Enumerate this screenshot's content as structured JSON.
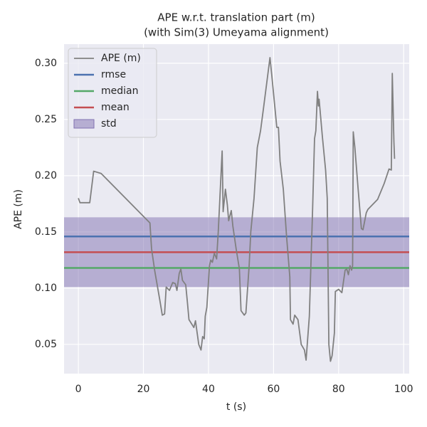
{
  "chart_data": {
    "type": "line",
    "title": "APE w.r.t. translation part (m)",
    "subtitle": "(with Sim(3) Umeyama alignment)",
    "xlabel": "t (s)",
    "ylabel": "APE (m)",
    "xlim": [
      -4.4,
      101.7
    ],
    "ylim": [
      0.024,
      0.317
    ],
    "xticks": [
      0,
      20,
      40,
      60,
      80,
      100
    ],
    "yticks": [
      {
        "value": 0.05,
        "label": "0.05"
      },
      {
        "value": 0.1,
        "label": "0.10"
      },
      {
        "value": 0.15,
        "label": "0.15"
      },
      {
        "value": 0.2,
        "label": "0.20"
      },
      {
        "value": 0.25,
        "label": "0.25"
      },
      {
        "value": 0.3,
        "label": "0.30"
      }
    ],
    "grid": true,
    "legend": "upper left",
    "series": [
      {
        "name": "APE (m)",
        "color": "#808080",
        "x": [
          0,
          0.5,
          3.5,
          4.7,
          7,
          22,
          22.5,
          23.5,
          25,
          25.8,
          26.5,
          27,
          28,
          29,
          29.8,
          30.3,
          31,
          31.5,
          32,
          33,
          33.5,
          34,
          35.5,
          36,
          37,
          37.7,
          38.2,
          38.7,
          39,
          39.5,
          40.3,
          40.7,
          41.2,
          41.8,
          42.5,
          43,
          44.2,
          44.5,
          45.2,
          45.8,
          46.2,
          47,
          47.5,
          48.5,
          49.5,
          50,
          51,
          51.5,
          52.5,
          53,
          54,
          55,
          56,
          57,
          58.9,
          59.5,
          61,
          61.5,
          62,
          63,
          64,
          65,
          65.2,
          66,
          66.5,
          67.5,
          68.5,
          69.5,
          70,
          71,
          72,
          72.6,
          73,
          73.5,
          73.8,
          74,
          75,
          76,
          76.5,
          77,
          77.5,
          78,
          78.7,
          79,
          80,
          81,
          82,
          82.5,
          83,
          83.5,
          84,
          84.3,
          84.5,
          85,
          86,
          87,
          87.5,
          88.5,
          89,
          92,
          94,
          95.5,
          96.2,
          96.5,
          97,
          97.2
        ],
        "values": [
          0.18,
          0.176,
          0.176,
          0.204,
          0.202,
          0.158,
          0.135,
          0.115,
          0.09,
          0.076,
          0.077,
          0.101,
          0.098,
          0.105,
          0.104,
          0.098,
          0.113,
          0.117,
          0.107,
          0.103,
          0.088,
          0.072,
          0.065,
          0.071,
          0.05,
          0.045,
          0.057,
          0.055,
          0.075,
          0.083,
          0.12,
          0.125,
          0.123,
          0.131,
          0.126,
          0.15,
          0.222,
          0.168,
          0.188,
          0.174,
          0.16,
          0.169,
          0.155,
          0.135,
          0.117,
          0.08,
          0.076,
          0.078,
          0.12,
          0.15,
          0.18,
          0.225,
          0.24,
          0.262,
          0.305,
          0.288,
          0.243,
          0.243,
          0.213,
          0.188,
          0.146,
          0.11,
          0.072,
          0.068,
          0.076,
          0.072,
          0.05,
          0.045,
          0.036,
          0.075,
          0.17,
          0.233,
          0.24,
          0.275,
          0.262,
          0.268,
          0.235,
          0.205,
          0.18,
          0.05,
          0.035,
          0.04,
          0.06,
          0.097,
          0.099,
          0.096,
          0.116,
          0.117,
          0.112,
          0.12,
          0.116,
          0.12,
          0.239,
          0.225,
          0.188,
          0.153,
          0.152,
          0.167,
          0.17,
          0.179,
          0.193,
          0.206,
          0.205,
          0.291,
          0.23,
          0.215
        ]
      }
    ],
    "reference_lines": [
      {
        "name": "rmse",
        "color": "#4c72b0",
        "value": 0.146
      },
      {
        "name": "median",
        "color": "#55a868",
        "value": 0.118
      },
      {
        "name": "mean",
        "color": "#c44e52",
        "value": 0.132
      }
    ],
    "bands": [
      {
        "name": "std",
        "color": "#8172b2",
        "lower": 0.101,
        "upper": 0.163
      }
    ]
  }
}
